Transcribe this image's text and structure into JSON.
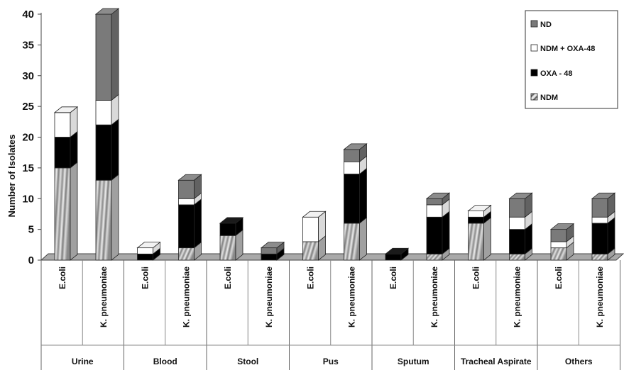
{
  "chart_data": {
    "type": "bar",
    "stacked": true,
    "three_d": true,
    "ylabel": "Number of Isolates",
    "xlabel": "",
    "ylim": [
      0,
      40
    ],
    "y_ticks": [
      0,
      5,
      10,
      15,
      20,
      25,
      30,
      35,
      40
    ],
    "grid": false,
    "legend_position": "top-right",
    "groups": [
      "Urine",
      "Blood",
      "Stool",
      "Pus",
      "Sputum",
      "Tracheal Aspirate",
      "Others"
    ],
    "categories": [
      "E.coli",
      "K. pneumoniae",
      "E.coli",
      "K. pneumoniae",
      "E.coli",
      "K. pneumoniae",
      "E.coli",
      "K. pneumoniae",
      "E.coli",
      "K. pneumoniae",
      "E.coli",
      "K. pneumoniae",
      "E.coli",
      "K. pneumoniae"
    ],
    "series": [
      {
        "name": "NDM",
        "pattern": "hatched-gray",
        "values": [
          15,
          13,
          0,
          2,
          4,
          0,
          3,
          6,
          0,
          1,
          6,
          1,
          2,
          1
        ]
      },
      {
        "name": "OXA - 48",
        "color": "#000000",
        "values": [
          5,
          9,
          1,
          7,
          2,
          1,
          0,
          8,
          1,
          6,
          1,
          4,
          0,
          5
        ]
      },
      {
        "name": "NDM + OXA-48",
        "color": "#ffffff",
        "values": [
          4,
          4,
          1,
          1,
          0,
          0,
          4,
          2,
          0,
          2,
          1,
          2,
          1,
          1
        ]
      },
      {
        "name": "ND",
        "color": "#7a7a7a",
        "values": [
          0,
          14,
          0,
          3,
          0,
          1,
          0,
          2,
          0,
          1,
          0,
          3,
          2,
          3
        ]
      }
    ],
    "legend_order": [
      "ND",
      "NDM + OXA-48",
      "OXA - 48",
      "NDM"
    ]
  }
}
